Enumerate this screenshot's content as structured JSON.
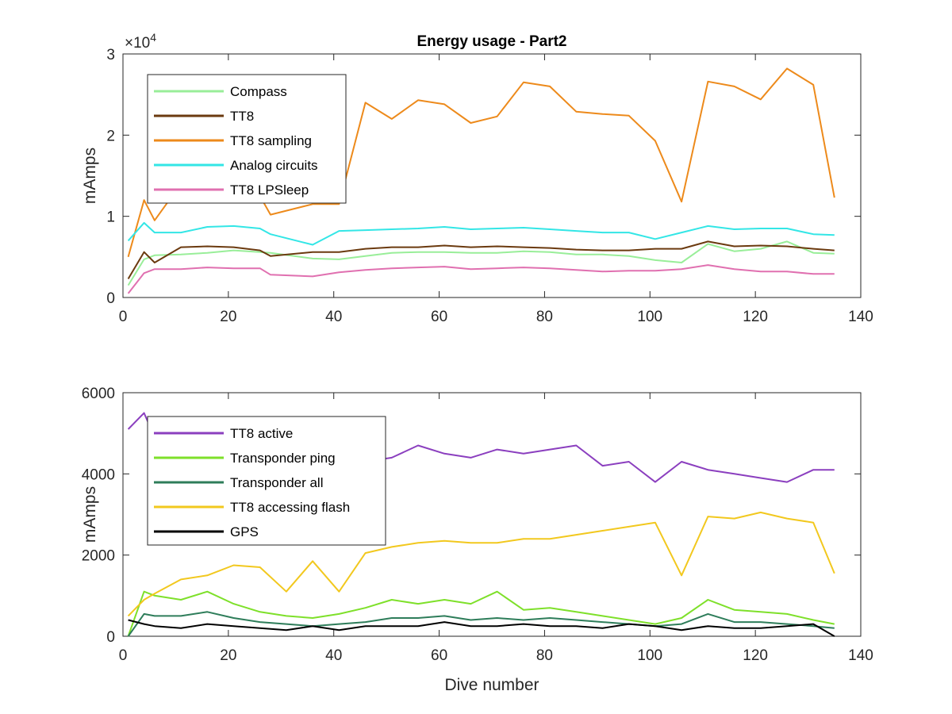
{
  "figure": {
    "title": "Energy usage - Part2"
  },
  "chart_data": [
    {
      "type": "line",
      "title": "Energy usage - Part2",
      "xlabel": "",
      "ylabel": "mAmps",
      "xlim": [
        0,
        140
      ],
      "ylim": [
        0,
        30000
      ],
      "xticks": [
        "0",
        "20",
        "40",
        "60",
        "80",
        "100",
        "120",
        "140"
      ],
      "yticks": [
        "0",
        "1",
        "2",
        "3"
      ],
      "y_exponent_label": "×10",
      "y_exponent_power": "4",
      "grid": false,
      "legend_position": "top-left",
      "x": [
        1,
        4,
        6,
        11,
        16,
        21,
        26,
        28,
        36,
        41,
        46,
        51,
        56,
        61,
        66,
        71,
        76,
        81,
        86,
        91,
        96,
        101,
        106,
        111,
        116,
        121,
        126,
        131,
        135
      ],
      "series": [
        {
          "name": "Compass",
          "color": "#99ee99",
          "values": [
            1500,
            4700,
            5200,
            5300,
            5500,
            5800,
            5600,
            5500,
            4800,
            4700,
            5100,
            5500,
            5600,
            5600,
            5500,
            5500,
            5700,
            5600,
            5300,
            5300,
            5100,
            4600,
            4300,
            6600,
            5700,
            6000,
            6900,
            5500,
            5400
          ]
        },
        {
          "name": "TT8",
          "color": "#6b3a0f",
          "values": [
            2300,
            5600,
            4300,
            6200,
            6300,
            6200,
            5800,
            5100,
            5600,
            5600,
            6000,
            6200,
            6200,
            6400,
            6200,
            6300,
            6200,
            6100,
            5900,
            5800,
            5800,
            6000,
            6000,
            6900,
            6300,
            6400,
            6300,
            6000,
            5800
          ]
        },
        {
          "name": "TT8 sampling",
          "color": "#ed8a1b",
          "values": [
            5000,
            12000,
            9500,
            14000,
            15500,
            16500,
            12500,
            10200,
            11500,
            11500,
            24000,
            22000,
            24300,
            23800,
            21500,
            22300,
            26500,
            26000,
            22900,
            22600,
            22400,
            19300,
            11800,
            26600,
            26000,
            24400,
            28200,
            26200,
            12300
          ]
        },
        {
          "name": "Analog circuits",
          "color": "#33e6e6",
          "values": [
            7000,
            9200,
            8000,
            8000,
            8700,
            8800,
            8500,
            7800,
            6500,
            8200,
            8300,
            8400,
            8500,
            8700,
            8400,
            8500,
            8600,
            8400,
            8200,
            8000,
            8000,
            7200,
            8000,
            8800,
            8400,
            8500,
            8500,
            7800,
            7700
          ]
        },
        {
          "name": "TT8 LPSleep",
          "color": "#e070b0",
          "values": [
            500,
            3000,
            3500,
            3500,
            3700,
            3600,
            3600,
            2800,
            2600,
            3100,
            3400,
            3600,
            3700,
            3800,
            3500,
            3600,
            3700,
            3600,
            3400,
            3200,
            3300,
            3300,
            3500,
            4000,
            3500,
            3200,
            3200,
            2900,
            2900
          ]
        }
      ]
    },
    {
      "type": "line",
      "title": "",
      "xlabel": "Dive number",
      "ylabel": "mAmps",
      "xlim": [
        0,
        140
      ],
      "ylim": [
        0,
        6000
      ],
      "xticks": [
        "0",
        "20",
        "40",
        "60",
        "80",
        "100",
        "120",
        "140"
      ],
      "yticks": [
        "0",
        "2000",
        "4000",
        "6000"
      ],
      "grid": false,
      "legend_position": "top-left",
      "x": [
        1,
        4,
        6,
        11,
        16,
        21,
        26,
        31,
        36,
        41,
        46,
        51,
        56,
        61,
        66,
        71,
        76,
        81,
        86,
        91,
        96,
        101,
        106,
        111,
        116,
        121,
        126,
        131,
        135
      ],
      "series": [
        {
          "name": "TT8 active",
          "color": "#8b3fbf",
          "values": [
            5100,
            5500,
            4900,
            4800,
            4700,
            4600,
            4400,
            4400,
            4300,
            4400,
            4300,
            4400,
            4700,
            4500,
            4400,
            4600,
            4500,
            4600,
            4700,
            4200,
            4300,
            3800,
            4300,
            4100,
            4000,
            3900,
            3800,
            4100,
            4100
          ]
        },
        {
          "name": "Transponder ping",
          "color": "#7ee02a",
          "values": [
            0,
            1100,
            1000,
            900,
            1100,
            800,
            600,
            500,
            450,
            550,
            700,
            900,
            800,
            900,
            800,
            1100,
            650,
            700,
            600,
            500,
            400,
            300,
            450,
            900,
            650,
            600,
            550,
            400,
            300
          ]
        },
        {
          "name": "Transponder all",
          "color": "#2e7d5a",
          "values": [
            0,
            550,
            500,
            500,
            600,
            450,
            350,
            300,
            250,
            300,
            350,
            450,
            450,
            500,
            400,
            450,
            400,
            450,
            400,
            350,
            300,
            250,
            300,
            550,
            350,
            350,
            300,
            250,
            200
          ]
        },
        {
          "name": "TT8 accessing flash",
          "color": "#f2c81e",
          "values": [
            500,
            900,
            1050,
            1400,
            1500,
            1750,
            1700,
            1100,
            1850,
            1100,
            2050,
            2200,
            2300,
            2350,
            2300,
            2300,
            2400,
            2400,
            2500,
            2600,
            2700,
            2800,
            1500,
            2950,
            2900,
            3050,
            2900,
            2800,
            1550
          ]
        },
        {
          "name": "GPS",
          "color": "#000000",
          "values": [
            400,
            300,
            250,
            200,
            300,
            250,
            200,
            150,
            250,
            150,
            250,
            250,
            250,
            350,
            250,
            250,
            300,
            250,
            250,
            200,
            300,
            250,
            150,
            250,
            200,
            200,
            250,
            300,
            0
          ]
        }
      ]
    }
  ]
}
